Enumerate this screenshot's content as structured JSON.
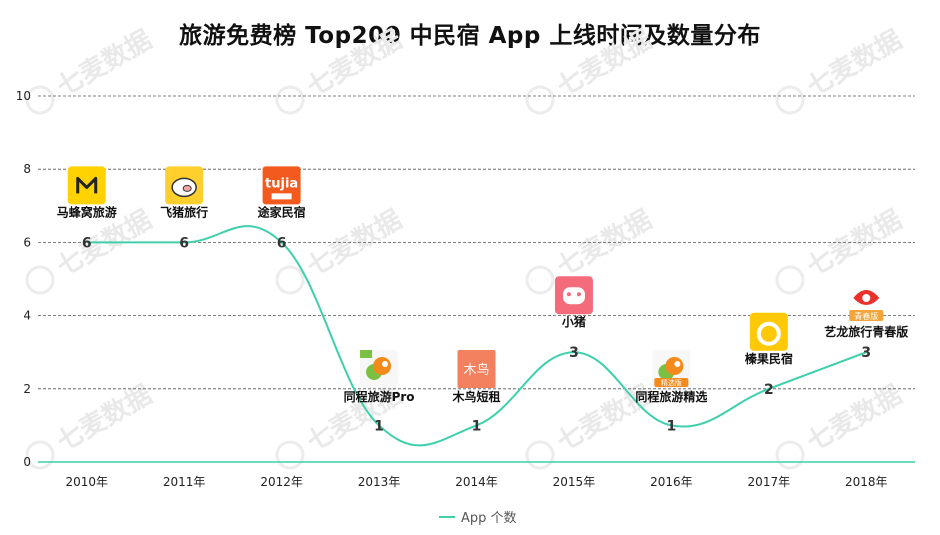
{
  "title": "旅游免费榜 Top200 中民宿 App 上线时间及数量分布",
  "chart_data": {
    "type": "line",
    "categories": [
      "2010年",
      "2011年",
      "2012年",
      "2013年",
      "2014年",
      "2015年",
      "2016年",
      "2017年",
      "2018年"
    ],
    "series": [
      {
        "name": "App 个数",
        "values": [
          6,
          6,
          6,
          1,
          1,
          3,
          1,
          2,
          3
        ],
        "color": "#3ecfab"
      }
    ],
    "ylim": [
      0,
      10
    ],
    "yticks": [
      0,
      2,
      4,
      6,
      8,
      10
    ],
    "grid": true,
    "legend": "bottom",
    "annotations": [
      {
        "category": "2010年",
        "app": "马蜂窝旅游",
        "icon": "mafengwo-icon"
      },
      {
        "category": "2011年",
        "app": "飞猪旅行",
        "icon": "feizhu-icon"
      },
      {
        "category": "2012年",
        "app": "途家民宿",
        "icon": "tujia-icon",
        "icon_text": "tujia"
      },
      {
        "category": "2013年",
        "app": "同程旅游Pro",
        "icon": "tongcheng-pro-icon"
      },
      {
        "category": "2014年",
        "app": "木鸟短租",
        "icon": "muniao-icon",
        "icon_text": "木鸟"
      },
      {
        "category": "2015年",
        "app": "小猪",
        "icon": "xiaozhu-icon"
      },
      {
        "category": "2016年",
        "app": "同程旅游精选",
        "icon": "tongcheng-jingxuan-icon",
        "icon_text": "精选版"
      },
      {
        "category": "2017年",
        "app": "榛果民宿",
        "icon": "zhenguo-icon"
      },
      {
        "category": "2018年",
        "app": "艺龙旅行青春版",
        "icon": "elong-youth-icon",
        "icon_text": "青春版"
      }
    ]
  },
  "watermark": "七麦数据"
}
